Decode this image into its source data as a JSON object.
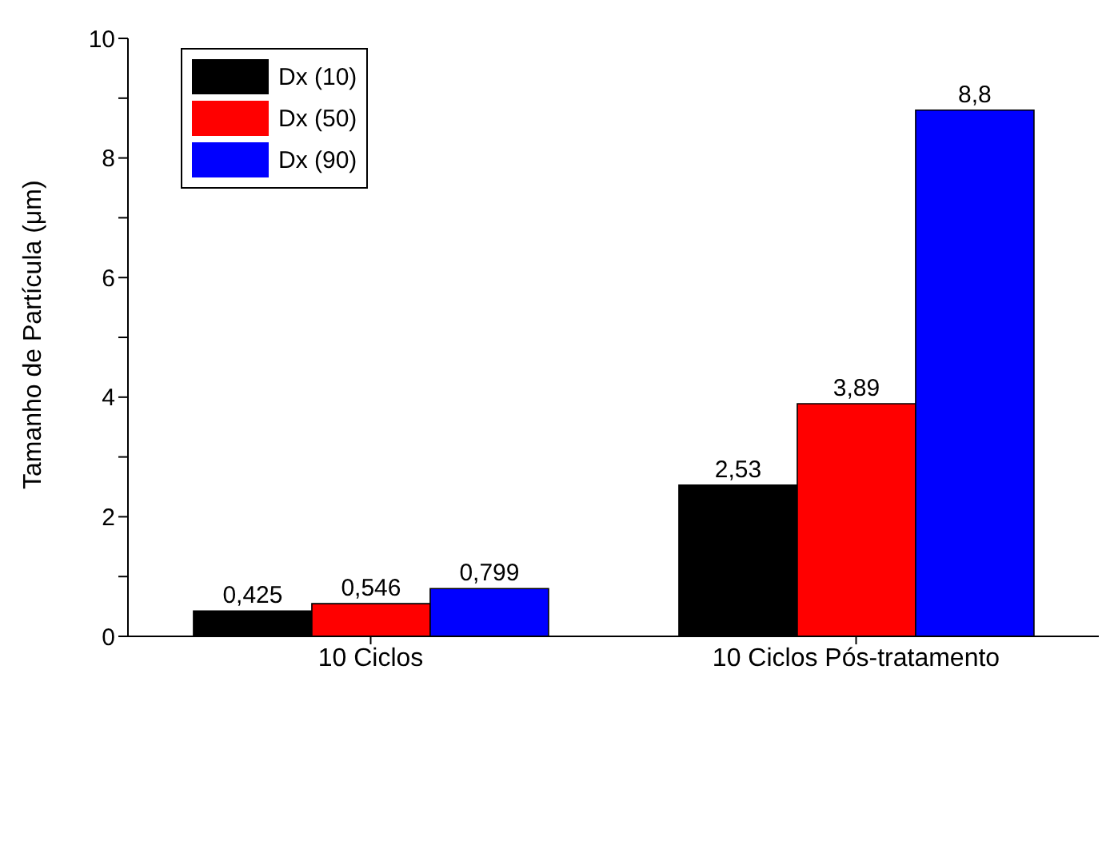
{
  "chart_data": {
    "type": "bar",
    "ylabel": "Tamanho de Partícula (μm)",
    "categories": [
      "10 Ciclos",
      "10 Ciclos Pós-tratamento"
    ],
    "series": [
      {
        "name": "Dx (10)",
        "color": "#000000",
        "values": [
          0.425,
          2.53
        ],
        "value_labels": [
          "0,425",
          "2,53"
        ]
      },
      {
        "name": "Dx (50)",
        "color": "#ff0000",
        "values": [
          0.546,
          3.89
        ],
        "value_labels": [
          "0,546",
          "3,89"
        ]
      },
      {
        "name": "Dx (90)",
        "color": "#0000ff",
        "values": [
          0.799,
          8.8
        ],
        "value_labels": [
          "0,799",
          "8,8"
        ]
      }
    ],
    "ylim": [
      0,
      10
    ],
    "yticks": [
      0,
      {
        "value": 1,
        "label": null
      },
      2,
      {
        "value": 3,
        "label": null
      },
      4,
      {
        "value": 5,
        "label": null
      },
      6,
      {
        "value": 7,
        "label": null
      },
      8,
      {
        "value": 9,
        "label": null
      },
      10
    ],
    "grid": false,
    "legend": "top left"
  }
}
